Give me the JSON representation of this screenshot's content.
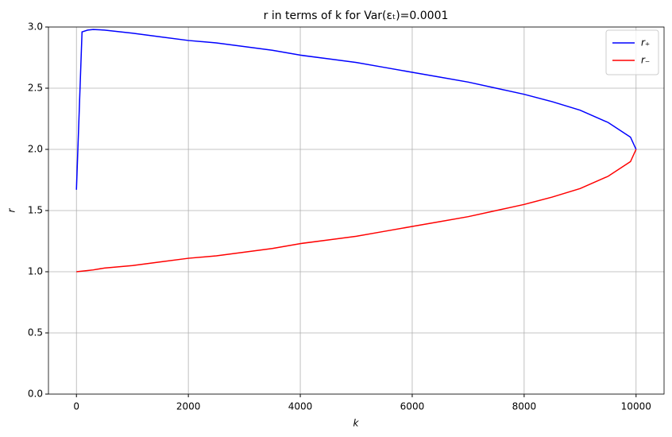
{
  "chart_data": {
    "type": "line",
    "title": "r in terms of k for Var(εₜ)=0.0001",
    "x_label": "k",
    "y_label": "r",
    "x": [
      0,
      100,
      200,
      300,
      500,
      1000,
      1500,
      2000,
      2500,
      3000,
      3500,
      4000,
      4500,
      5000,
      5500,
      6000,
      6500,
      7000,
      7500,
      8000,
      8500,
      9000,
      9500,
      9900,
      10000
    ],
    "series": [
      {
        "name": "r₊",
        "color": "#0000ff",
        "values": [
          1.67,
          2.96,
          2.975,
          2.98,
          2.975,
          2.95,
          2.92,
          2.89,
          2.87,
          2.84,
          2.81,
          2.77,
          2.74,
          2.71,
          2.67,
          2.63,
          2.59,
          2.55,
          2.5,
          2.45,
          2.39,
          2.32,
          2.22,
          2.1,
          2.0
        ]
      },
      {
        "name": "r₋",
        "color": "#ff0000",
        "values": [
          1.0,
          1.005,
          1.01,
          1.015,
          1.03,
          1.05,
          1.08,
          1.11,
          1.13,
          1.16,
          1.19,
          1.23,
          1.26,
          1.29,
          1.33,
          1.37,
          1.41,
          1.45,
          1.5,
          1.55,
          1.61,
          1.68,
          1.78,
          1.9,
          2.0
        ]
      }
    ],
    "xlim": [
      -500,
      10500
    ],
    "xticks": [
      0,
      2000,
      4000,
      6000,
      8000,
      10000
    ],
    "ylim": [
      0,
      3
    ],
    "yticks": [
      {
        "value": 0,
        "label": "0.0"
      },
      0.5,
      {
        "value": 1,
        "label": "1.0"
      },
      1.5,
      {
        "value": 2,
        "label": "2.0"
      },
      2.5,
      {
        "value": 3,
        "label": "3.0"
      }
    ],
    "grid": true,
    "legend": "upper right"
  }
}
